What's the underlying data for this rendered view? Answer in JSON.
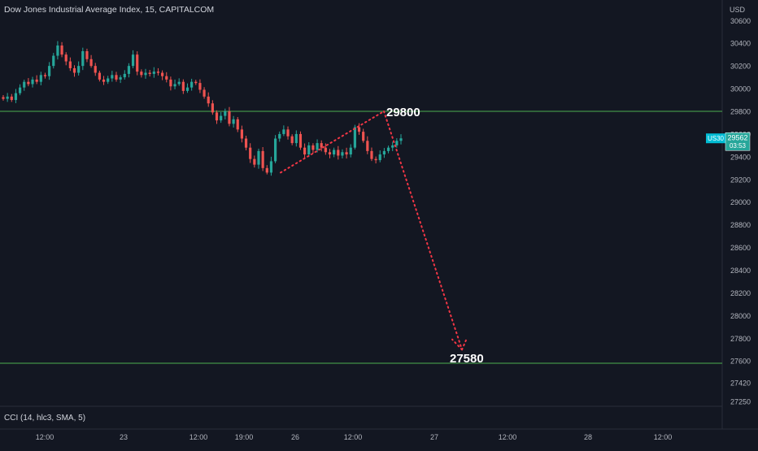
{
  "chart": {
    "title": "Dow Jones Industrial Average Index, 15, CAPITALCOM",
    "currency": "USD",
    "indicator_label": "CCI (14, hlc3, SMA, 5)",
    "symbol": "US30",
    "last_price": "29562",
    "countdown": "03:53",
    "colors": {
      "background": "#131722",
      "up": "#26a69a",
      "down": "#ef5350",
      "level_line": "#4caf50",
      "projection": "#f23645",
      "symbol_badge": "#00bcd4"
    }
  },
  "chart_data": {
    "type": "candlestick",
    "title": "Dow Jones Industrial Average Index, 15, CAPITALCOM",
    "y_axis": {
      "ticks": [
        30600,
        30400,
        30200,
        30000,
        29800,
        29600,
        29400,
        29200,
        29000,
        28800,
        28600,
        28400,
        28200,
        28000,
        27800,
        27600,
        27420,
        27250
      ],
      "labels": [
        "30600",
        "30400",
        "30200",
        "30000",
        "29800",
        "29600",
        "29400",
        "29200",
        "29000",
        "28800",
        "28600",
        "28400",
        "28200",
        "28000",
        "27800",
        "27600",
        "27420",
        "27250"
      ],
      "ylim": [
        27250,
        30700
      ]
    },
    "x_axis": {
      "labels": [
        "12:00",
        "23",
        "12:00",
        "19:00",
        "26",
        "12:00",
        "27",
        "12:00",
        "28",
        "12:00"
      ]
    },
    "horizontal_levels": [
      {
        "value": 29800,
        "label": "29800"
      },
      {
        "value": 27580,
        "label": "27580"
      }
    ],
    "price_path": [
      29910,
      29930,
      29900,
      29960,
      30010,
      30060,
      30040,
      30080,
      30060,
      30120,
      30110,
      30200,
      30290,
      30380,
      30300,
      30240,
      30180,
      30140,
      30200,
      30330,
      30260,
      30200,
      30140,
      30080,
      30060,
      30090,
      30120,
      30080,
      30100,
      30130,
      30200,
      30300,
      30150,
      30120,
      30140,
      30130,
      30150,
      30140,
      30110,
      30080,
      30020,
      30040,
      30060,
      29980,
      30010,
      30060,
      30050,
      29990,
      29930,
      29870,
      29790,
      29720,
      29760,
      29800,
      29690,
      29730,
      29640,
      29560,
      29480,
      29380,
      29330,
      29450,
      29300,
      29260,
      29360,
      29560,
      29600,
      29640,
      29580,
      29520,
      29600,
      29480,
      29420,
      29500,
      29460,
      29520,
      29480,
      29440,
      29420,
      29460,
      29410,
      29440,
      29420,
      29480,
      29660,
      29620,
      29540,
      29450,
      29380,
      29370,
      29420,
      29450,
      29480,
      29500,
      29540,
      29562
    ],
    "projection": [
      {
        "from": [
          29270,
          "left-low"
        ],
        "to": [
          29800,
          "peak"
        ]
      },
      {
        "from": [
          29800,
          "peak"
        ],
        "to": [
          27580,
          "target"
        ]
      }
    ]
  }
}
